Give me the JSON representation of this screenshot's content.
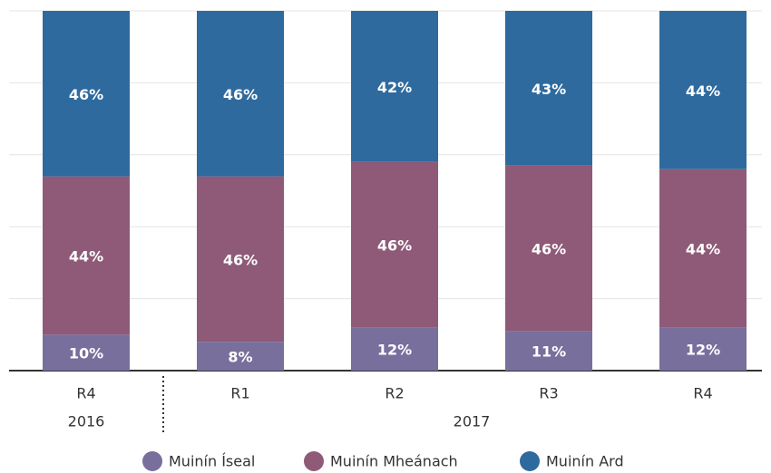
{
  "chart_data": {
    "type": "stacked_bar",
    "categories": [
      "R4",
      "R1",
      "R2",
      "R3",
      "R4"
    ],
    "x_groups": [
      {
        "label": "2016",
        "count": 1
      },
      {
        "label": "2017",
        "count": 4
      }
    ],
    "series": [
      {
        "name": "Muinín Íseal",
        "color": "#786f9c",
        "values": [
          10,
          8,
          12,
          11,
          12
        ],
        "value_labels": [
          "10%",
          "8%",
          "12%",
          "11%",
          "12%"
        ]
      },
      {
        "name": "Muinín Mheánach",
        "color": "#8e5a78",
        "values": [
          44,
          46,
          46,
          46,
          44
        ],
        "value_labels": [
          "44%",
          "46%",
          "46%",
          "46%",
          "44%"
        ]
      },
      {
        "name": "Muinín Ard",
        "color": "#2e6a9e",
        "values": [
          46,
          46,
          42,
          43,
          44
        ],
        "value_labels": [
          "46%",
          "46%",
          "42%",
          "43%",
          "44%"
        ]
      }
    ],
    "ylim": [
      0,
      100
    ],
    "yticks": [
      0,
      20,
      40,
      60,
      80,
      100
    ],
    "grid": true
  }
}
